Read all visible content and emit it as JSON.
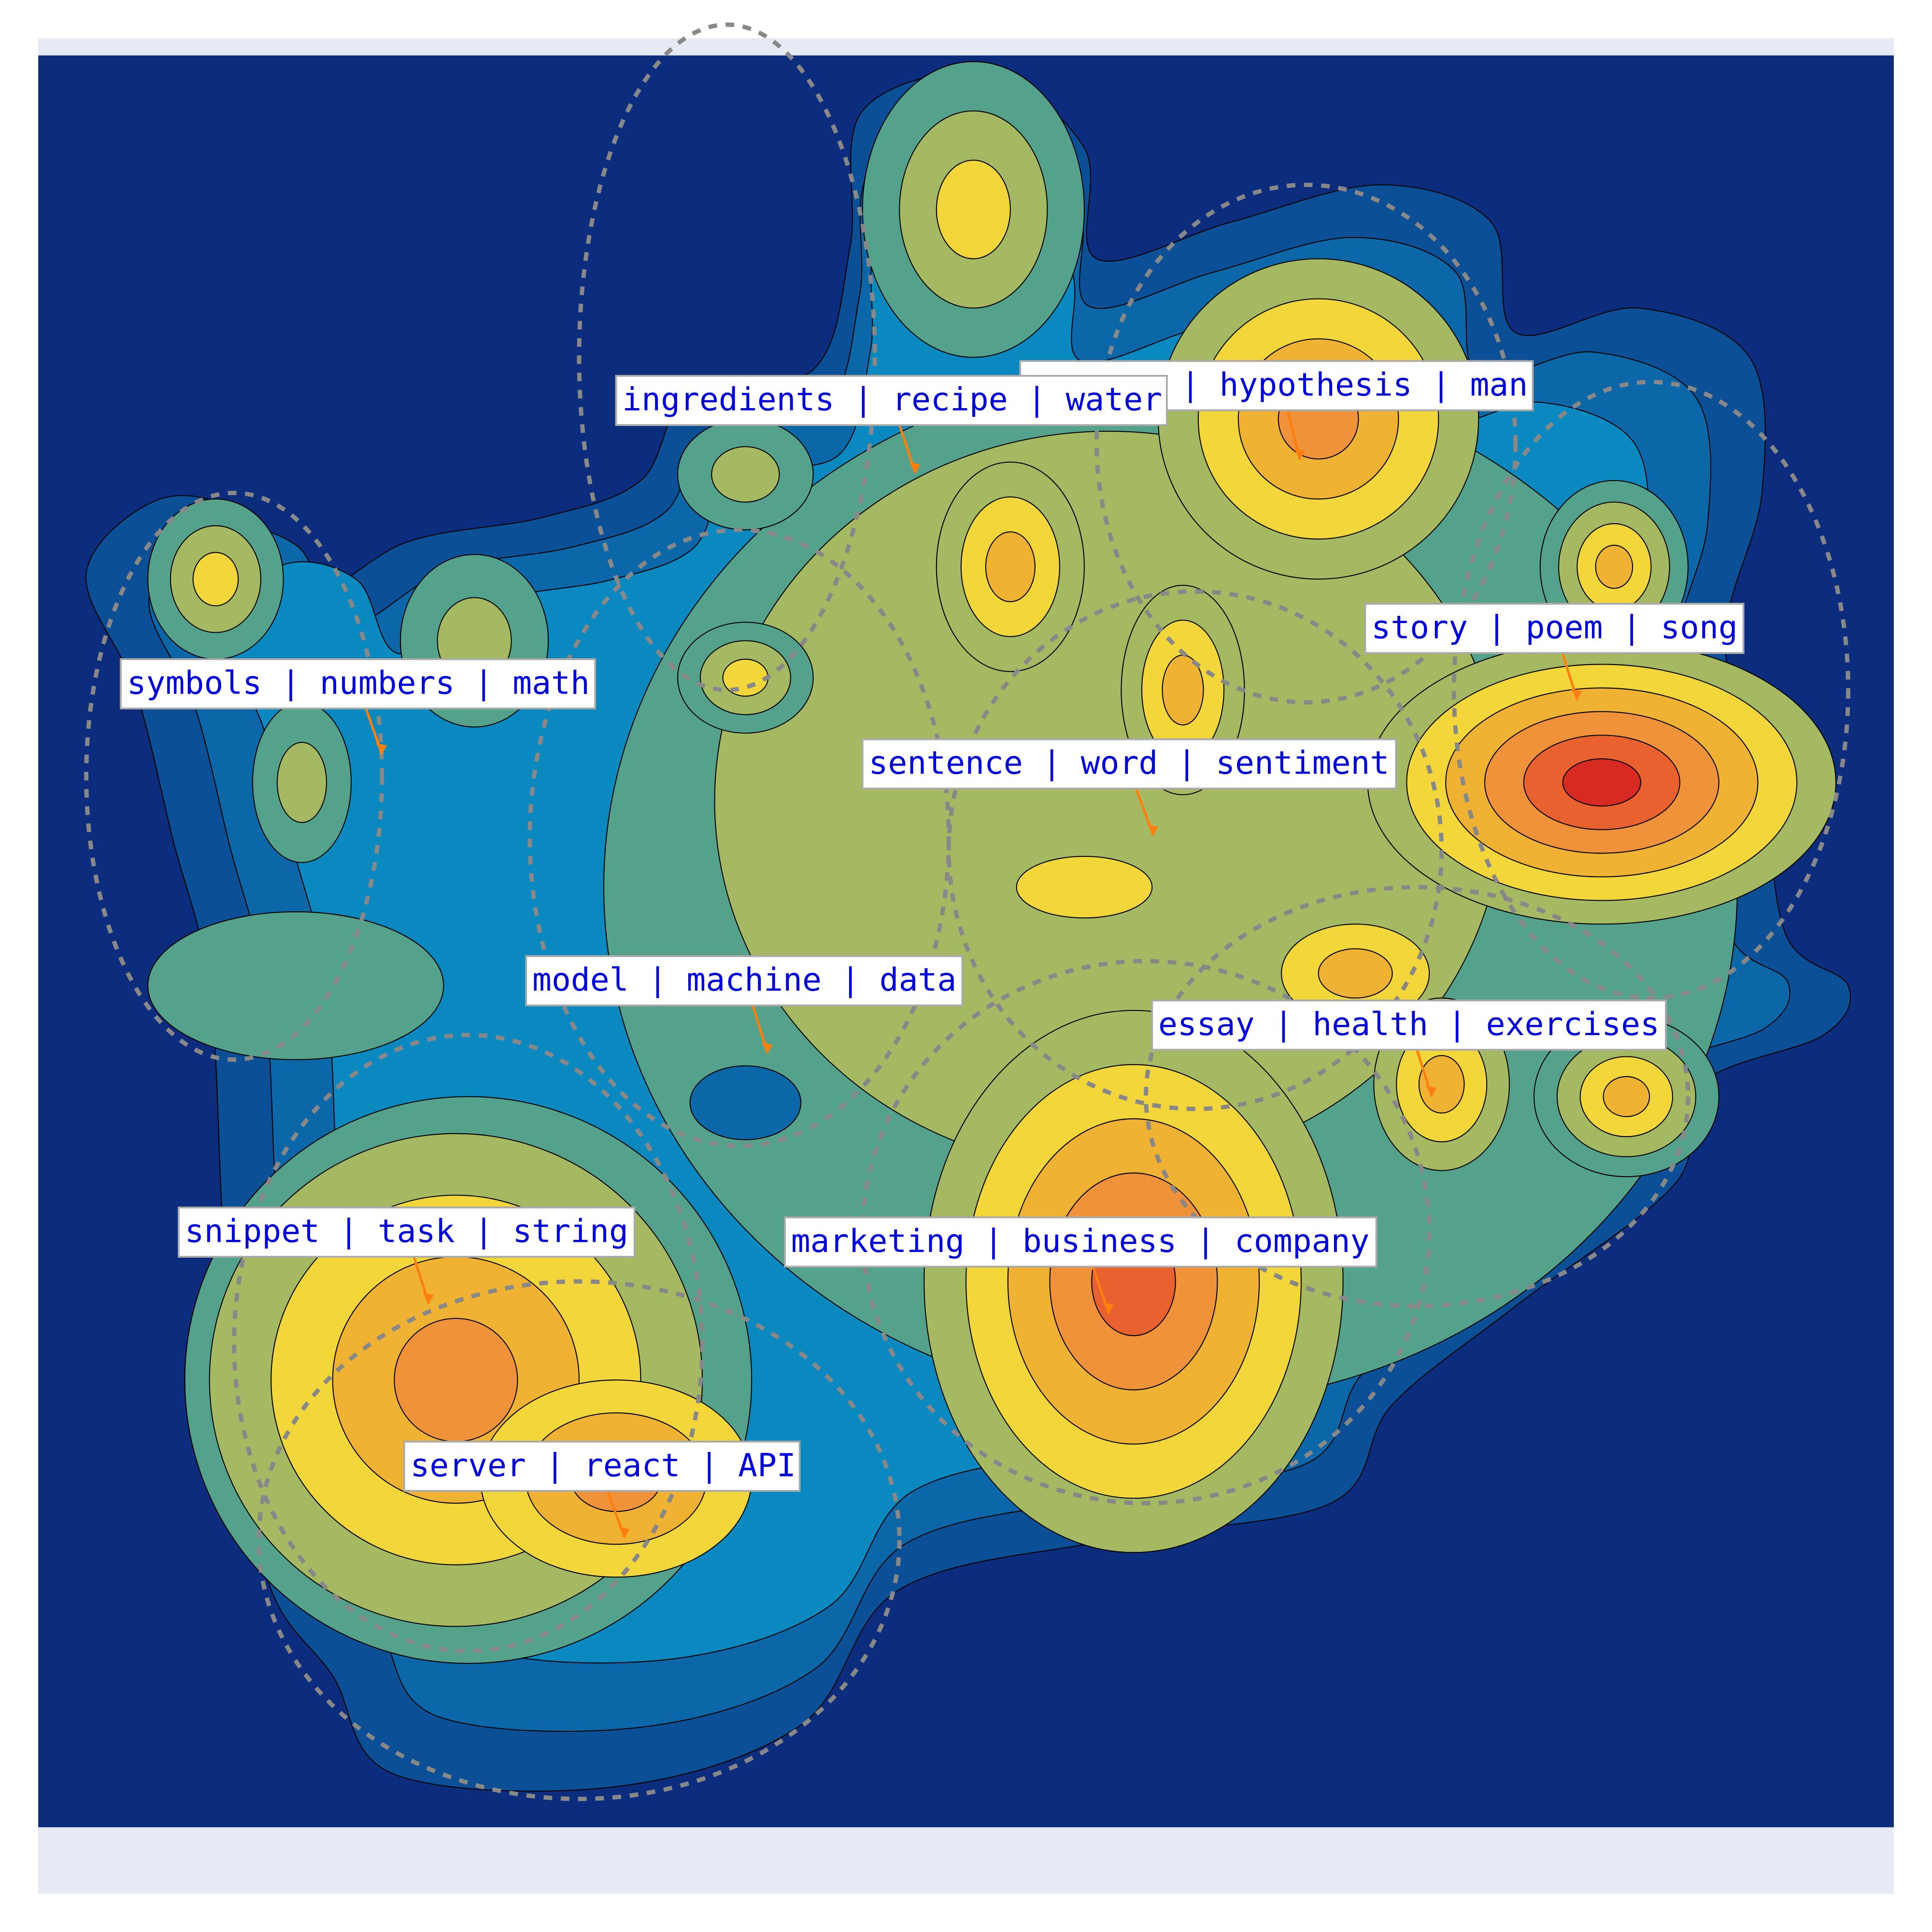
{
  "labels": [
    "| hypothesis | man",
    "ingredients | recipe | water",
    "story | poem | song",
    "symbols | numbers | math",
    "sentence | word | sentiment",
    "model | machine | data",
    "essay | health | exercises",
    "snippet | task | string",
    "marketing | business | company",
    "server | react | API"
  ]
}
